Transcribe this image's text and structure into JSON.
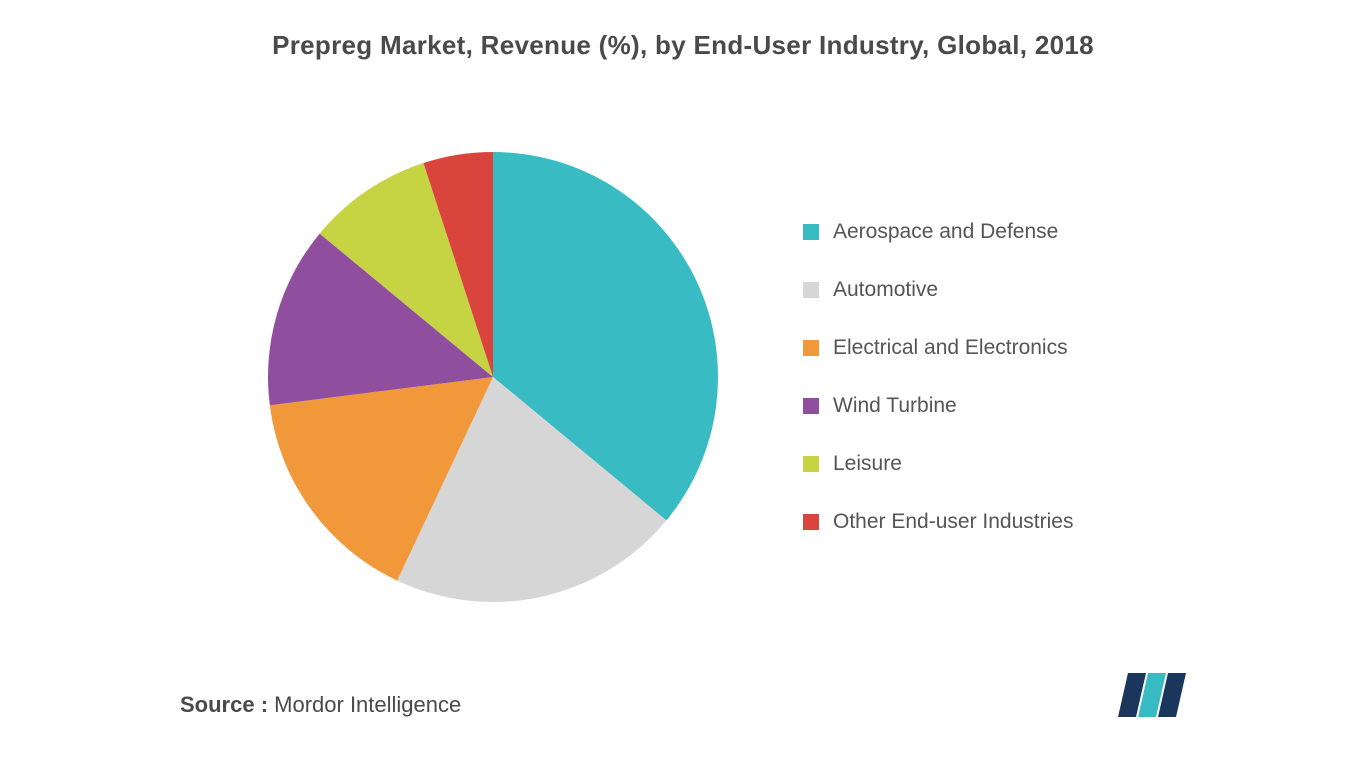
{
  "chart": {
    "type": "pie",
    "title": "Prepreg Market, Revenue (%), by End-User Industry, Global, 2018",
    "title_fontsize": 26,
    "title_color": "#4a4a4a",
    "background_color": "#ffffff",
    "start_angle_deg": 0,
    "pie_radius": 225,
    "slices": [
      {
        "label": "Aerospace and Defense",
        "value": 36,
        "color": "#39bbc3"
      },
      {
        "label": "Automotive",
        "value": 21,
        "color": "#d6d6d6"
      },
      {
        "label": "Electrical and Electronics",
        "value": 16,
        "color": "#f0983a"
      },
      {
        "label": "Wind Turbine",
        "value": 13,
        "color": "#8f4e9e"
      },
      {
        "label": "Leisure",
        "value": 9,
        "color": "#c6d343"
      },
      {
        "label": "Other End-user Industries",
        "value": 5,
        "color": "#d9453d"
      }
    ],
    "legend": {
      "position": "right",
      "swatch_size": 16,
      "gap": 34,
      "label_fontsize": 21,
      "label_color": "#555555"
    }
  },
  "footer": {
    "source_label": "Source :",
    "source_value": " Mordor Intelligence",
    "source_fontsize": 22,
    "source_color": "#4a4a4a"
  },
  "logo": {
    "bar1_color": "#1b365d",
    "bar2_color": "#39bbc3",
    "bar3_color": "#1b365d"
  }
}
